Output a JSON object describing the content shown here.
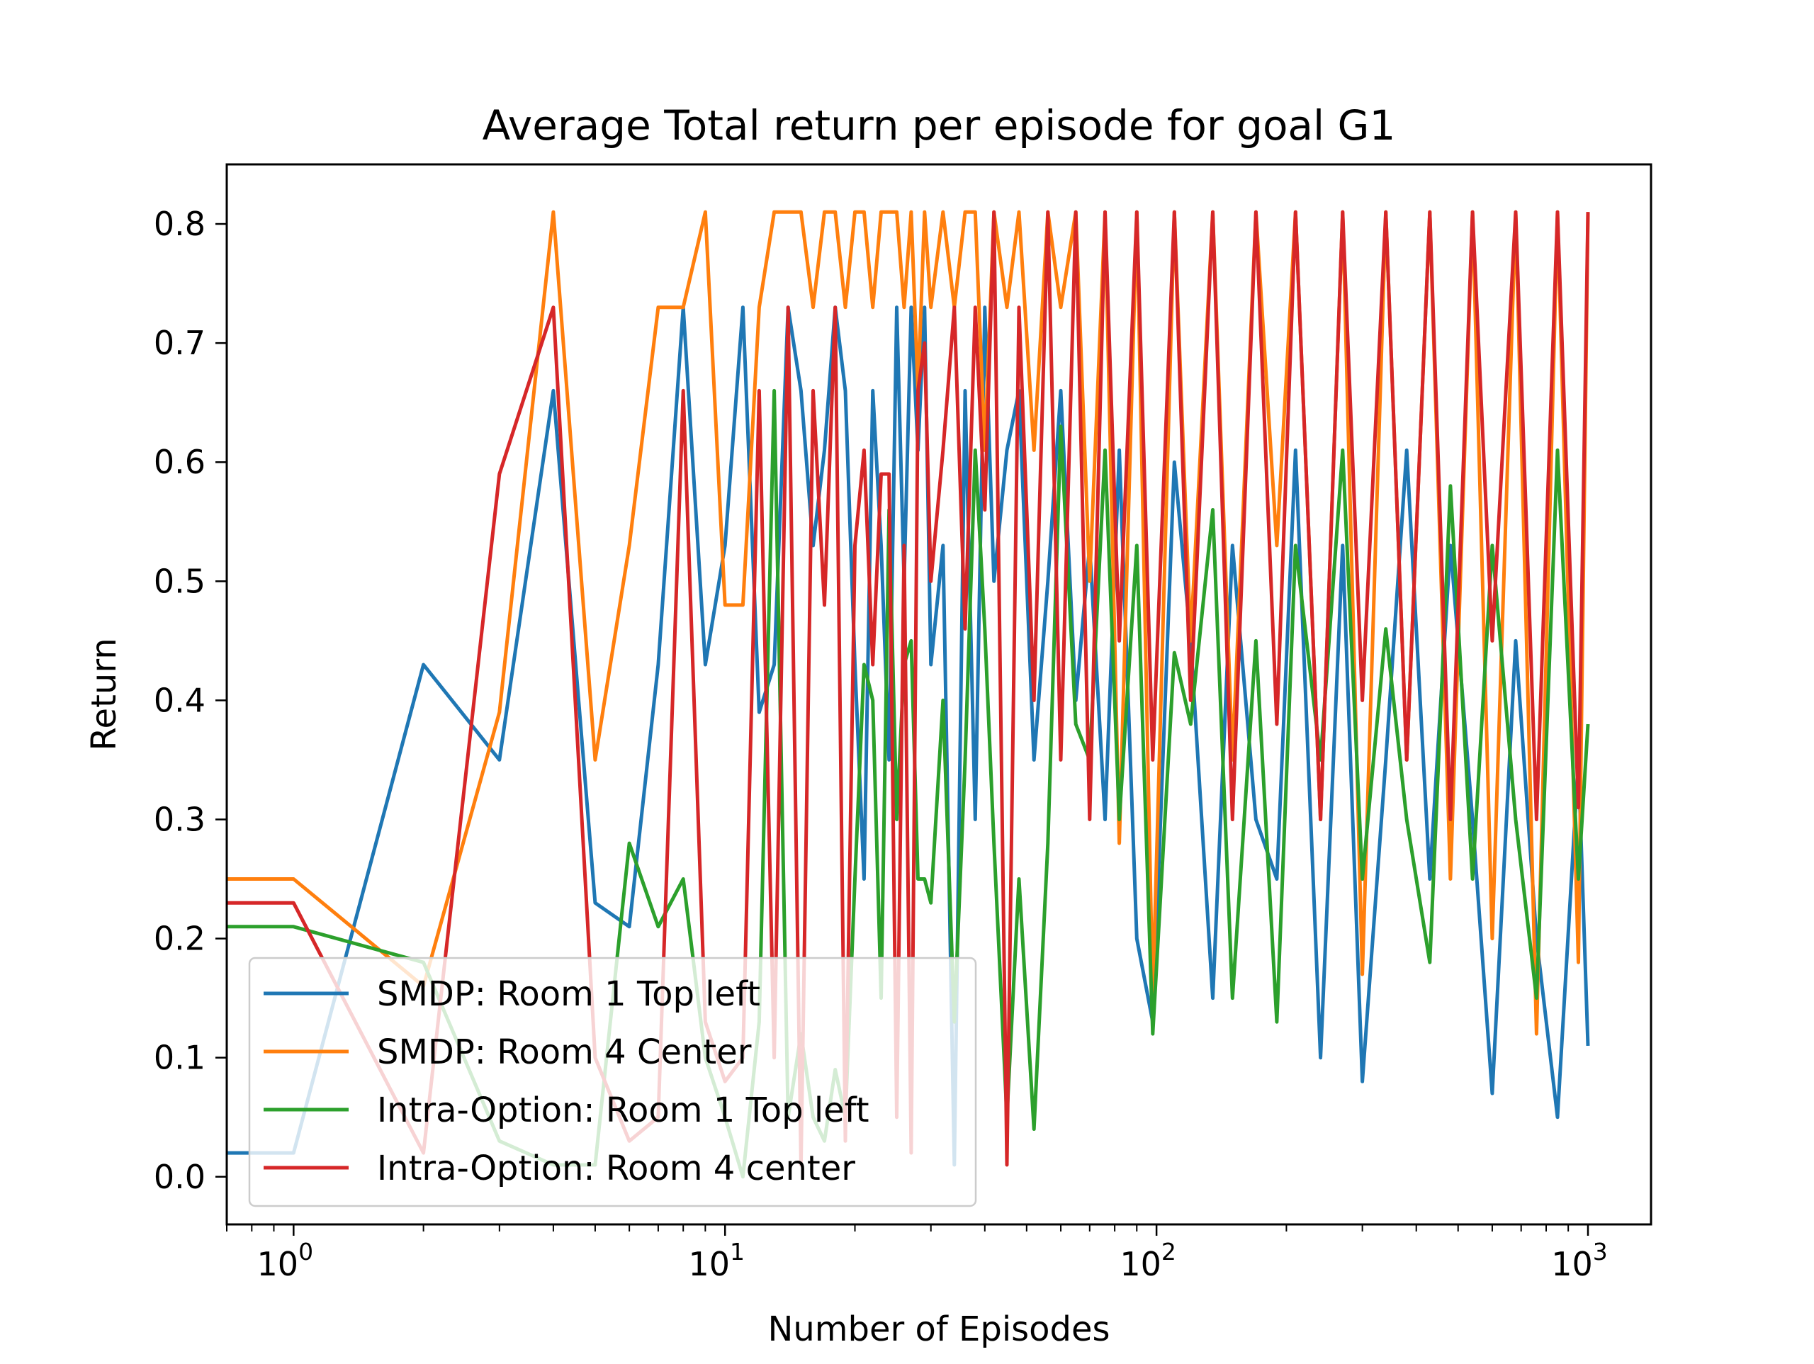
{
  "chart_data": {
    "type": "line",
    "title": "Average Total return per episode for goal G1",
    "xlabel": "Number of Episodes",
    "ylabel": "Return",
    "xscale": "log",
    "xlim": [
      0.7,
      1400
    ],
    "ylim": [
      -0.04,
      0.85
    ],
    "x_ticks": [
      {
        "value": 1,
        "base": "10",
        "exp": "0"
      },
      {
        "value": 10,
        "base": "10",
        "exp": "1"
      },
      {
        "value": 100,
        "base": "10",
        "exp": "2"
      },
      {
        "value": 1000,
        "base": "10",
        "exp": "3"
      }
    ],
    "y_ticks": [
      {
        "value": 0.0,
        "label": "0.0"
      },
      {
        "value": 0.1,
        "label": "0.1"
      },
      {
        "value": 0.2,
        "label": "0.2"
      },
      {
        "value": 0.3,
        "label": "0.3"
      },
      {
        "value": 0.4,
        "label": "0.4"
      },
      {
        "value": 0.5,
        "label": "0.5"
      },
      {
        "value": 0.6,
        "label": "0.6"
      },
      {
        "value": 0.7,
        "label": "0.7"
      },
      {
        "value": 0.8,
        "label": "0.8"
      }
    ],
    "grid": false,
    "legend_position": "lower-left",
    "series": [
      {
        "name": "SMDP: Room 1 Top left",
        "color": "#1f77b4",
        "x": [
          0,
          1,
          2,
          3,
          4,
          5,
          6,
          7,
          8,
          9,
          10,
          11,
          12,
          13,
          14,
          15,
          16,
          17,
          18,
          19,
          20,
          21,
          22,
          23,
          24,
          25,
          26,
          27,
          28,
          29,
          30,
          32,
          34,
          36,
          38,
          40,
          42,
          45,
          48,
          52,
          56,
          60,
          65,
          70,
          76,
          82,
          90,
          98,
          110,
          120,
          135,
          150,
          170,
          190,
          210,
          240,
          270,
          300,
          340,
          380,
          430,
          480,
          540,
          600,
          680,
          760,
          850,
          950,
          1000
        ],
        "y": [
          0.02,
          0.02,
          0.43,
          0.35,
          0.66,
          0.23,
          0.21,
          0.43,
          0.73,
          0.43,
          0.53,
          0.73,
          0.39,
          0.43,
          0.73,
          0.66,
          0.53,
          0.61,
          0.73,
          0.66,
          0.43,
          0.25,
          0.66,
          0.53,
          0.35,
          0.73,
          0.5,
          0.73,
          0.61,
          0.73,
          0.43,
          0.53,
          0.01,
          0.66,
          0.3,
          0.73,
          0.5,
          0.61,
          0.66,
          0.35,
          0.5,
          0.66,
          0.4,
          0.53,
          0.3,
          0.61,
          0.2,
          0.13,
          0.6,
          0.45,
          0.15,
          0.53,
          0.3,
          0.25,
          0.61,
          0.1,
          0.53,
          0.08,
          0.35,
          0.61,
          0.25,
          0.53,
          0.3,
          0.07,
          0.45,
          0.2,
          0.05,
          0.35,
          0.11
        ]
      },
      {
        "name": "SMDP: Room 4 Center",
        "color": "#ff7f0e",
        "x": [
          0,
          1,
          2,
          3,
          4,
          5,
          6,
          7,
          8,
          9,
          10,
          11,
          12,
          13,
          14,
          15,
          16,
          17,
          18,
          19,
          20,
          21,
          22,
          23,
          24,
          25,
          26,
          27,
          28,
          29,
          30,
          32,
          34,
          36,
          38,
          40,
          42,
          45,
          48,
          52,
          56,
          60,
          65,
          70,
          76,
          82,
          90,
          98,
          110,
          120,
          135,
          150,
          170,
          190,
          210,
          240,
          270,
          300,
          340,
          380,
          430,
          480,
          540,
          600,
          680,
          760,
          850,
          950,
          1000
        ],
        "y": [
          0.25,
          0.25,
          0.16,
          0.39,
          0.81,
          0.35,
          0.53,
          0.73,
          0.73,
          0.81,
          0.48,
          0.48,
          0.73,
          0.81,
          0.81,
          0.81,
          0.73,
          0.81,
          0.81,
          0.73,
          0.81,
          0.81,
          0.73,
          0.81,
          0.81,
          0.81,
          0.73,
          0.81,
          0.66,
          0.81,
          0.73,
          0.81,
          0.73,
          0.81,
          0.81,
          0.61,
          0.81,
          0.73,
          0.81,
          0.61,
          0.81,
          0.73,
          0.81,
          0.5,
          0.81,
          0.28,
          0.81,
          0.15,
          0.81,
          0.45,
          0.81,
          0.35,
          0.81,
          0.53,
          0.81,
          0.3,
          0.81,
          0.17,
          0.81,
          0.35,
          0.81,
          0.25,
          0.81,
          0.2,
          0.81,
          0.12,
          0.81,
          0.18,
          0.81
        ]
      },
      {
        "name": "Intra-Option: Room 1 Top left",
        "color": "#2ca02c",
        "x": [
          0,
          1,
          2,
          3,
          4,
          5,
          6,
          7,
          8,
          9,
          10,
          11,
          12,
          13,
          14,
          15,
          16,
          17,
          18,
          19,
          20,
          21,
          22,
          23,
          24,
          25,
          26,
          27,
          28,
          29,
          30,
          32,
          34,
          36,
          38,
          40,
          42,
          45,
          48,
          52,
          56,
          60,
          65,
          70,
          76,
          82,
          90,
          98,
          110,
          120,
          135,
          150,
          170,
          190,
          210,
          240,
          270,
          300,
          340,
          380,
          430,
          480,
          540,
          600,
          680,
          760,
          850,
          950,
          1000
        ],
        "y": [
          0.21,
          0.21,
          0.18,
          0.03,
          0.01,
          0.01,
          0.28,
          0.21,
          0.25,
          0.1,
          0.05,
          0.0,
          0.13,
          0.66,
          0.05,
          0.12,
          0.05,
          0.03,
          0.09,
          0.05,
          0.25,
          0.43,
          0.4,
          0.15,
          0.56,
          0.3,
          0.43,
          0.45,
          0.25,
          0.25,
          0.23,
          0.4,
          0.13,
          0.35,
          0.61,
          0.46,
          0.28,
          0.05,
          0.25,
          0.04,
          0.28,
          0.63,
          0.38,
          0.35,
          0.61,
          0.3,
          0.53,
          0.12,
          0.44,
          0.38,
          0.56,
          0.15,
          0.45,
          0.13,
          0.53,
          0.35,
          0.61,
          0.25,
          0.46,
          0.3,
          0.18,
          0.58,
          0.25,
          0.53,
          0.3,
          0.15,
          0.61,
          0.25,
          0.38
        ]
      },
      {
        "name": "Intra-Option: Room 4 center",
        "color": "#d62728",
        "x": [
          0,
          1,
          2,
          3,
          4,
          5,
          6,
          7,
          8,
          9,
          10,
          11,
          12,
          13,
          14,
          15,
          16,
          17,
          18,
          19,
          20,
          21,
          22,
          23,
          24,
          25,
          26,
          27,
          28,
          29,
          30,
          32,
          34,
          36,
          38,
          40,
          42,
          45,
          48,
          52,
          56,
          60,
          65,
          70,
          76,
          82,
          90,
          98,
          110,
          120,
          135,
          150,
          170,
          190,
          210,
          240,
          270,
          300,
          340,
          380,
          430,
          480,
          540,
          600,
          680,
          760,
          850,
          950,
          1000
        ],
        "y": [
          0.23,
          0.23,
          0.02,
          0.59,
          0.73,
          0.1,
          0.03,
          0.05,
          0.66,
          0.13,
          0.08,
          0.1,
          0.66,
          0.1,
          0.73,
          0.01,
          0.66,
          0.48,
          0.73,
          0.03,
          0.53,
          0.61,
          0.43,
          0.59,
          0.59,
          0.05,
          0.53,
          0.02,
          0.66,
          0.7,
          0.5,
          0.61,
          0.73,
          0.46,
          0.73,
          0.56,
          0.81,
          0.01,
          0.73,
          0.4,
          0.81,
          0.35,
          0.81,
          0.3,
          0.81,
          0.45,
          0.81,
          0.35,
          0.81,
          0.4,
          0.81,
          0.3,
          0.81,
          0.38,
          0.81,
          0.3,
          0.81,
          0.4,
          0.81,
          0.35,
          0.81,
          0.3,
          0.81,
          0.45,
          0.81,
          0.3,
          0.81,
          0.31,
          0.81
        ]
      }
    ]
  }
}
